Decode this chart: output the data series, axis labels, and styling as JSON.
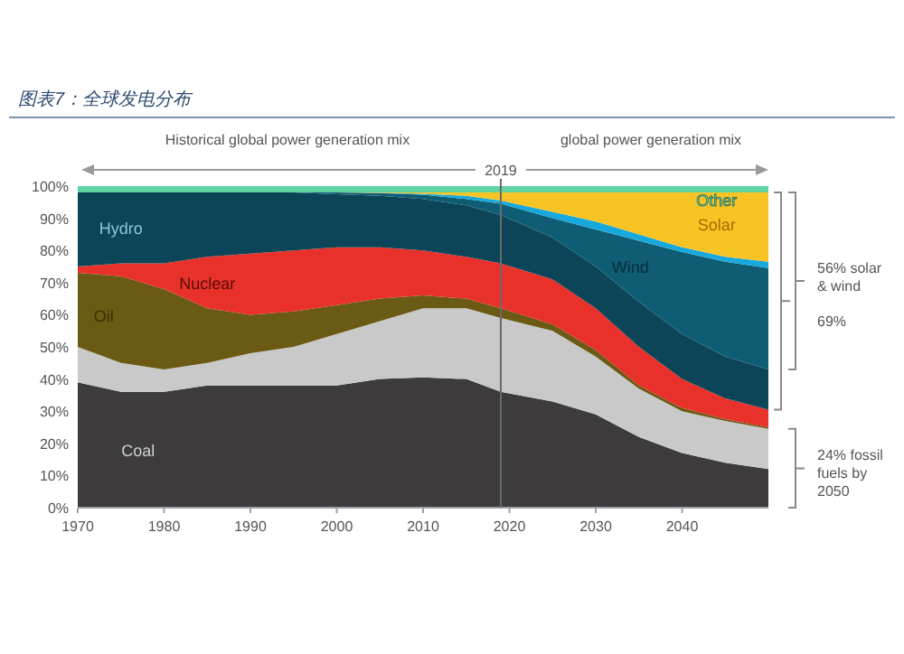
{
  "chart_data": {
    "type": "area",
    "stacked": true,
    "title": "图表7：全球发电分布",
    "x": [
      1970,
      1975,
      1980,
      1985,
      1990,
      1995,
      2000,
      2005,
      2010,
      2015,
      2019,
      2025,
      2030,
      2035,
      2040,
      2045,
      2050
    ],
    "series": [
      {
        "name": "Coal",
        "color": "#3d3b3c",
        "values": [
          39,
          36,
          36,
          38,
          38,
          38,
          38,
          40,
          40.5,
          40,
          36,
          33,
          29,
          22,
          17,
          14,
          12
        ]
      },
      {
        "color": "#c9c9c9",
        "values": [
          11,
          9,
          7,
          7,
          10,
          12,
          16,
          18,
          21.5,
          22,
          23,
          22,
          18,
          15,
          13,
          13,
          12.5
        ]
      },
      {
        "name": "Oil",
        "color": "#6b5a14",
        "values": [
          23,
          27,
          25,
          17,
          12,
          11,
          9,
          7,
          4,
          3,
          3,
          2,
          2,
          1,
          1,
          0.5,
          0.5
        ]
      },
      {
        "name": "Nuclear",
        "color": "#e8312a",
        "values": [
          2,
          4,
          8,
          16,
          19,
          19,
          18,
          16,
          14,
          13,
          14,
          14,
          13,
          12,
          9,
          6.5,
          5.5
        ]
      },
      {
        "name": "Hydro",
        "color": "#0c4557",
        "values": [
          23,
          22,
          22,
          20,
          19,
          18,
          16.5,
          16,
          16,
          16,
          15,
          13,
          13,
          14,
          14,
          13,
          12.5
        ]
      },
      {
        "name": "Wind",
        "color": "#0f5d75",
        "values": [
          0,
          0,
          0,
          0,
          0,
          0,
          0.5,
          0.8,
          1.3,
          2,
          3.5,
          6,
          11.5,
          19,
          25.5,
          29.5,
          31.5
        ]
      },
      {
        "color": "#17a9de",
        "values": [
          0,
          0,
          0,
          0,
          0,
          0,
          0,
          0.1,
          0.3,
          1,
          1,
          2,
          2.5,
          2,
          1.5,
          1.5,
          2
        ]
      },
      {
        "name": "Solar",
        "color": "#f7c325",
        "values": [
          0,
          0,
          0,
          0,
          0,
          0,
          0,
          0.1,
          0.4,
          1,
          2.5,
          6,
          9,
          13,
          17,
          20,
          21.5
        ]
      },
      {
        "name": "Other",
        "color": "#62d3a2",
        "values": [
          2,
          2,
          2,
          2,
          2,
          2,
          2,
          2,
          2,
          2,
          2,
          2,
          2,
          2,
          2,
          2,
          2
        ]
      }
    ],
    "xlim": [
      1970,
      2050
    ],
    "xticks": [
      1970,
      1980,
      1990,
      2000,
      2010,
      2020,
      2030,
      2040
    ],
    "ylim": [
      0,
      100
    ],
    "yticks": [
      {
        "value": 0,
        "label": "0%"
      },
      {
        "value": 10,
        "label": "10%"
      },
      {
        "value": 20,
        "label": "20%"
      },
      {
        "value": 30,
        "label": "30%"
      },
      {
        "value": 40,
        "label": "40%"
      },
      {
        "value": 50,
        "label": "50%"
      },
      {
        "value": 60,
        "label": "60%"
      },
      {
        "value": 70,
        "label": "70%"
      },
      {
        "value": 80,
        "label": "80%"
      },
      {
        "value": 90,
        "label": "90%"
      },
      {
        "value": 100,
        "label": "100%"
      }
    ],
    "ref_lines": [
      {
        "axis": "x",
        "value": 2019,
        "label": "2019",
        "color": "#6b6b6b"
      }
    ],
    "annotations": [
      "Historical global power generation mix",
      "global power generation mix",
      "56% solar & wind",
      "69%",
      "24% fossil fuels by 2050"
    ],
    "grid": false
  }
}
